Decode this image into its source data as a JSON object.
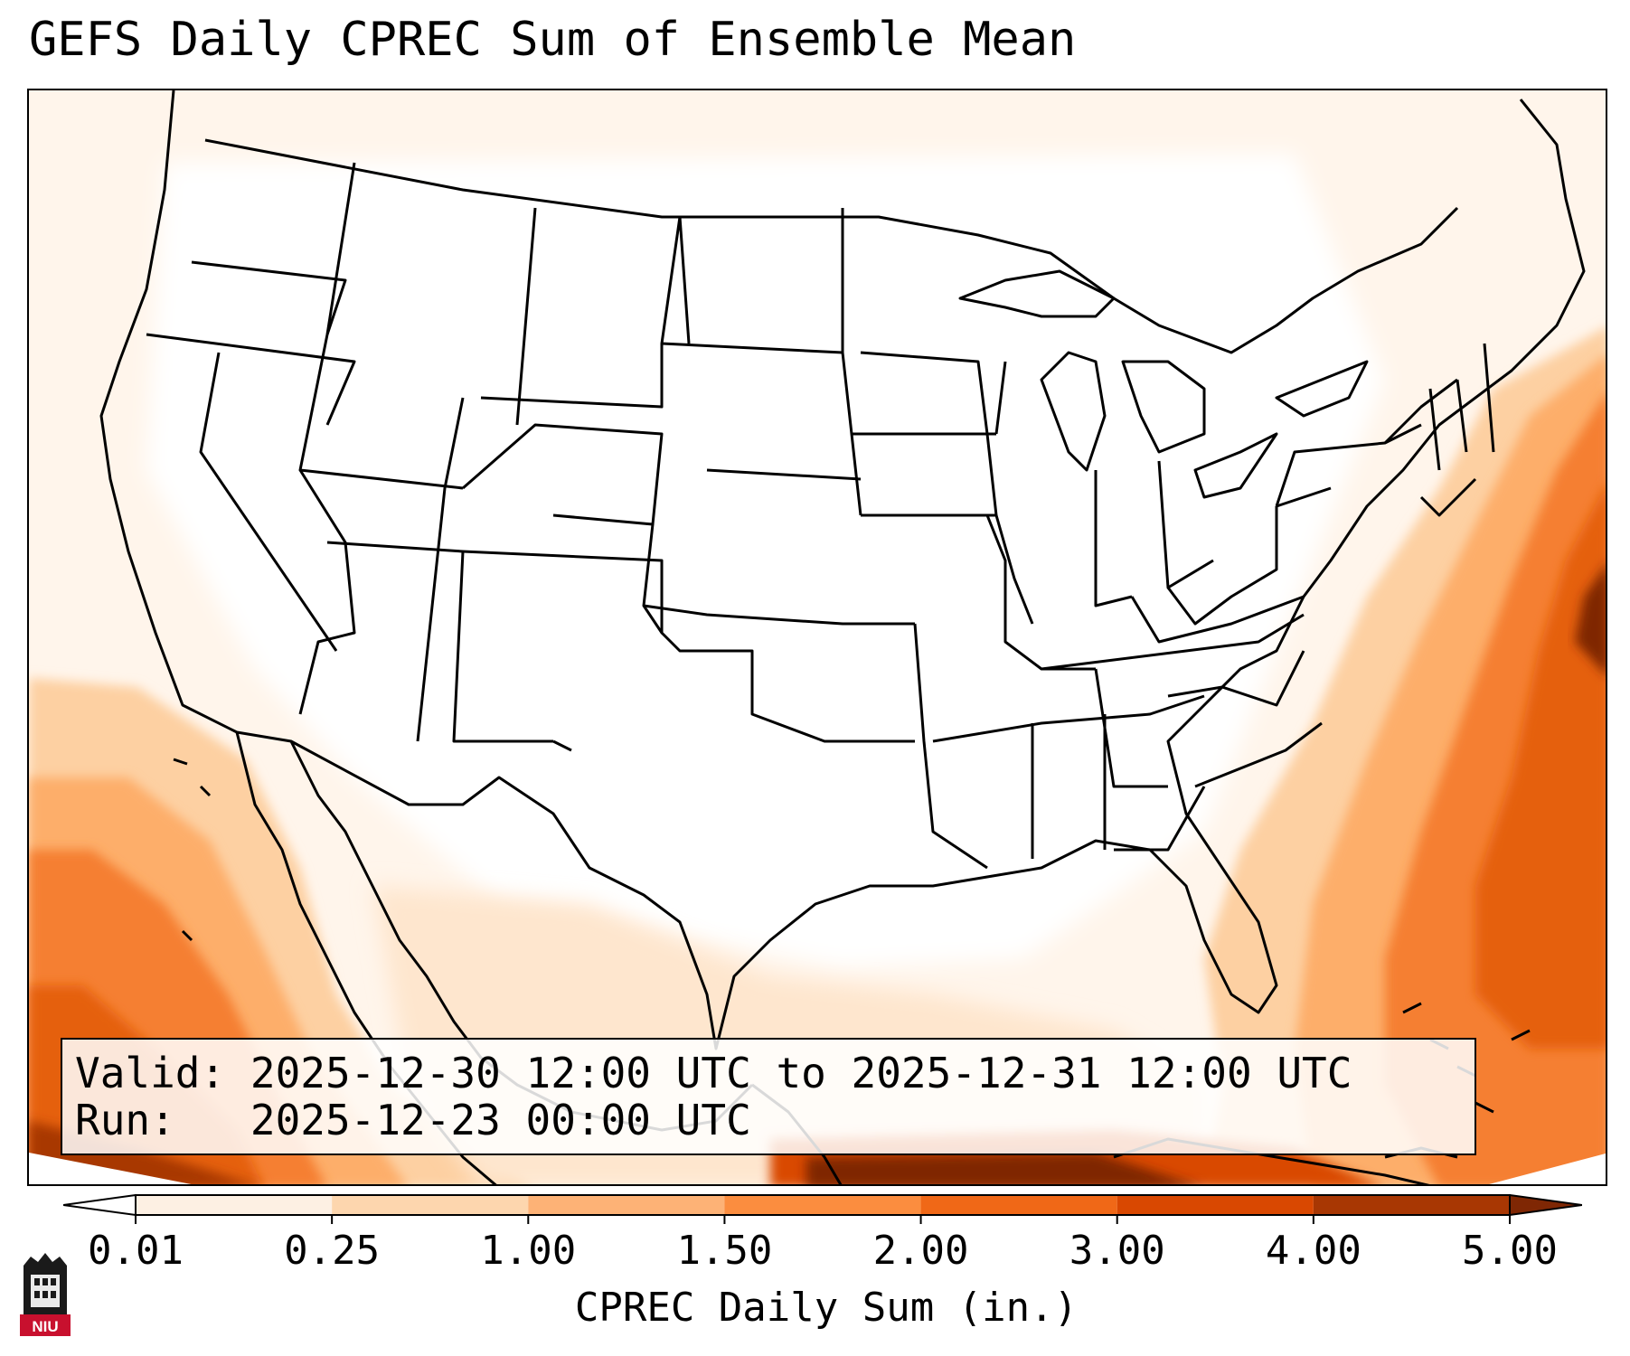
{
  "title": "GEFS Daily CPREC Sum of Ensemble Mean",
  "info": {
    "valid_label": "Valid:",
    "valid_value": "2025-12-30 12:00 UTC to 2025-12-31 12:00 UTC",
    "run_label": "Run:  ",
    "run_value": "2025-12-23 00:00 UTC"
  },
  "colorbar": {
    "label": "CPREC Daily Sum (in.)",
    "ticks": [
      "0.01",
      "0.25",
      "1.00",
      "1.50",
      "2.00",
      "3.00",
      "4.00",
      "5.00"
    ],
    "levels": [
      0.01,
      0.25,
      1.0,
      1.5,
      2.0,
      3.0,
      4.0,
      5.0
    ],
    "colors": [
      "#fdf0e3",
      "#fdd6ae",
      "#fdb276",
      "#fb8d3f",
      "#f06817",
      "#d94801",
      "#a83703"
    ],
    "under_color": "#ffffff",
    "over_color": "#7f2704",
    "extend": "both"
  },
  "map": {
    "region": "CONUS",
    "field": "GEFS ensemble mean daily convective precipitation",
    "max_region": "western Atlantic off the Mid-Atlantic coast"
  },
  "logo": {
    "text": "NIU",
    "icon": "niu-building-logo"
  }
}
